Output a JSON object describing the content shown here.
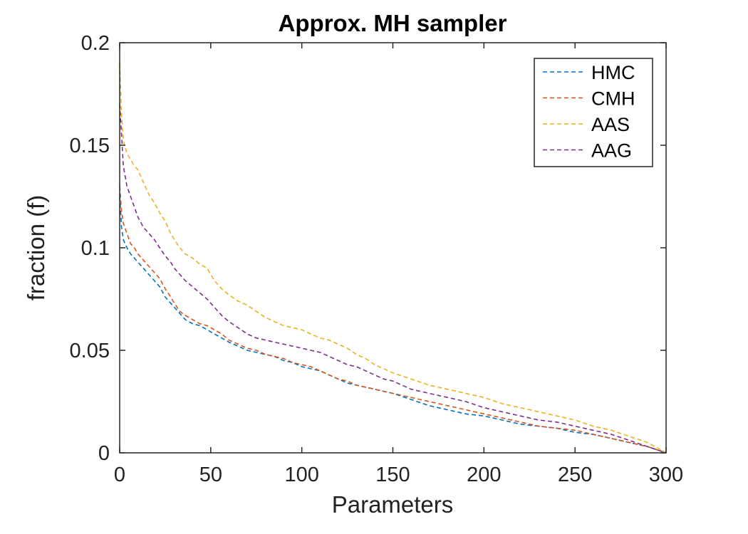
{
  "chart_data": {
    "type": "line",
    "title": "Approx. MH sampler",
    "xlabel": "Parameters",
    "ylabel": "fraction (f)",
    "xlim": [
      0,
      300
    ],
    "ylim": [
      0,
      0.2
    ],
    "xticks": [
      0,
      50,
      100,
      150,
      200,
      250,
      300
    ],
    "yticks": [
      0,
      0.05,
      0.1,
      0.15,
      0.2
    ],
    "xtick_labels": [
      "0",
      "50",
      "100",
      "150",
      "200",
      "250",
      "300"
    ],
    "ytick_labels": [
      "0",
      "0.05",
      "0.1",
      "0.15",
      "0.2"
    ],
    "grid": false,
    "legend_position": "top-right",
    "line_style": "dashed",
    "series": [
      {
        "name": "HMC",
        "color": "#0072BD",
        "x": [
          0,
          1,
          2,
          4,
          6,
          8,
          10,
          13,
          16,
          19,
          22,
          25,
          28,
          30,
          33,
          36,
          40,
          44,
          48,
          52,
          56,
          60,
          65,
          70,
          75,
          80,
          85,
          90,
          95,
          100,
          105,
          110,
          115,
          120,
          125,
          130,
          135,
          140,
          145,
          150,
          160,
          170,
          180,
          190,
          200,
          210,
          220,
          230,
          240,
          250,
          260,
          270,
          280,
          290,
          300
        ],
        "y": [
          0.125,
          0.11,
          0.104,
          0.1,
          0.097,
          0.095,
          0.093,
          0.09,
          0.087,
          0.084,
          0.081,
          0.076,
          0.073,
          0.071,
          0.068,
          0.065,
          0.063,
          0.062,
          0.06,
          0.058,
          0.056,
          0.054,
          0.052,
          0.05,
          0.049,
          0.048,
          0.047,
          0.045,
          0.044,
          0.042,
          0.041,
          0.04,
          0.038,
          0.036,
          0.034,
          0.033,
          0.032,
          0.031,
          0.03,
          0.029,
          0.026,
          0.023,
          0.021,
          0.019,
          0.018,
          0.016,
          0.014,
          0.013,
          0.012,
          0.01,
          0.009,
          0.007,
          0.005,
          0.003,
          0.0
        ]
      },
      {
        "name": "CMH",
        "color": "#D95319",
        "x": [
          0,
          1,
          2,
          4,
          6,
          8,
          10,
          13,
          16,
          19,
          22,
          25,
          28,
          30,
          33,
          36,
          40,
          44,
          48,
          52,
          56,
          60,
          65,
          70,
          75,
          80,
          85,
          90,
          95,
          100,
          105,
          110,
          115,
          120,
          125,
          130,
          135,
          140,
          145,
          150,
          160,
          170,
          180,
          190,
          200,
          210,
          220,
          230,
          240,
          250,
          260,
          270,
          280,
          290,
          300
        ],
        "y": [
          0.13,
          0.118,
          0.112,
          0.107,
          0.102,
          0.1,
          0.097,
          0.094,
          0.091,
          0.088,
          0.085,
          0.08,
          0.076,
          0.073,
          0.069,
          0.067,
          0.065,
          0.063,
          0.062,
          0.06,
          0.058,
          0.055,
          0.053,
          0.051,
          0.05,
          0.048,
          0.047,
          0.046,
          0.044,
          0.043,
          0.042,
          0.04,
          0.038,
          0.036,
          0.035,
          0.033,
          0.032,
          0.031,
          0.03,
          0.029,
          0.027,
          0.025,
          0.023,
          0.021,
          0.019,
          0.017,
          0.015,
          0.013,
          0.012,
          0.011,
          0.009,
          0.007,
          0.005,
          0.003,
          0.0
        ]
      },
      {
        "name": "AAS",
        "color": "#EDB120",
        "x": [
          0,
          1,
          2,
          4,
          6,
          8,
          10,
          13,
          16,
          19,
          22,
          25,
          28,
          30,
          33,
          36,
          40,
          44,
          48,
          52,
          56,
          60,
          65,
          70,
          75,
          80,
          85,
          90,
          95,
          100,
          105,
          110,
          115,
          120,
          125,
          130,
          135,
          140,
          145,
          150,
          160,
          170,
          180,
          190,
          200,
          210,
          220,
          230,
          240,
          250,
          260,
          270,
          280,
          290,
          300
        ],
        "y": [
          0.19,
          0.165,
          0.152,
          0.146,
          0.143,
          0.14,
          0.138,
          0.132,
          0.126,
          0.122,
          0.117,
          0.113,
          0.107,
          0.104,
          0.1,
          0.097,
          0.095,
          0.092,
          0.09,
          0.084,
          0.08,
          0.077,
          0.074,
          0.072,
          0.069,
          0.066,
          0.064,
          0.062,
          0.061,
          0.06,
          0.058,
          0.056,
          0.055,
          0.053,
          0.051,
          0.048,
          0.046,
          0.043,
          0.041,
          0.039,
          0.036,
          0.033,
          0.031,
          0.029,
          0.027,
          0.024,
          0.022,
          0.02,
          0.018,
          0.016,
          0.013,
          0.011,
          0.008,
          0.005,
          0.0
        ]
      },
      {
        "name": "AAG",
        "color": "#7E2F8E",
        "x": [
          0,
          1,
          2,
          4,
          6,
          8,
          10,
          13,
          16,
          19,
          22,
          25,
          28,
          30,
          33,
          36,
          40,
          44,
          48,
          52,
          56,
          60,
          65,
          70,
          75,
          80,
          85,
          90,
          95,
          100,
          105,
          110,
          115,
          120,
          125,
          130,
          135,
          140,
          145,
          150,
          160,
          170,
          180,
          190,
          200,
          210,
          220,
          230,
          240,
          250,
          260,
          270,
          280,
          290,
          300
        ],
        "y": [
          0.17,
          0.155,
          0.14,
          0.13,
          0.125,
          0.12,
          0.115,
          0.11,
          0.107,
          0.104,
          0.1,
          0.096,
          0.093,
          0.09,
          0.087,
          0.084,
          0.081,
          0.078,
          0.075,
          0.071,
          0.067,
          0.064,
          0.061,
          0.058,
          0.056,
          0.055,
          0.054,
          0.053,
          0.052,
          0.051,
          0.05,
          0.049,
          0.047,
          0.045,
          0.043,
          0.042,
          0.04,
          0.038,
          0.036,
          0.035,
          0.031,
          0.029,
          0.027,
          0.025,
          0.022,
          0.02,
          0.018,
          0.016,
          0.015,
          0.013,
          0.011,
          0.009,
          0.006,
          0.003,
          0.0
        ]
      }
    ]
  }
}
